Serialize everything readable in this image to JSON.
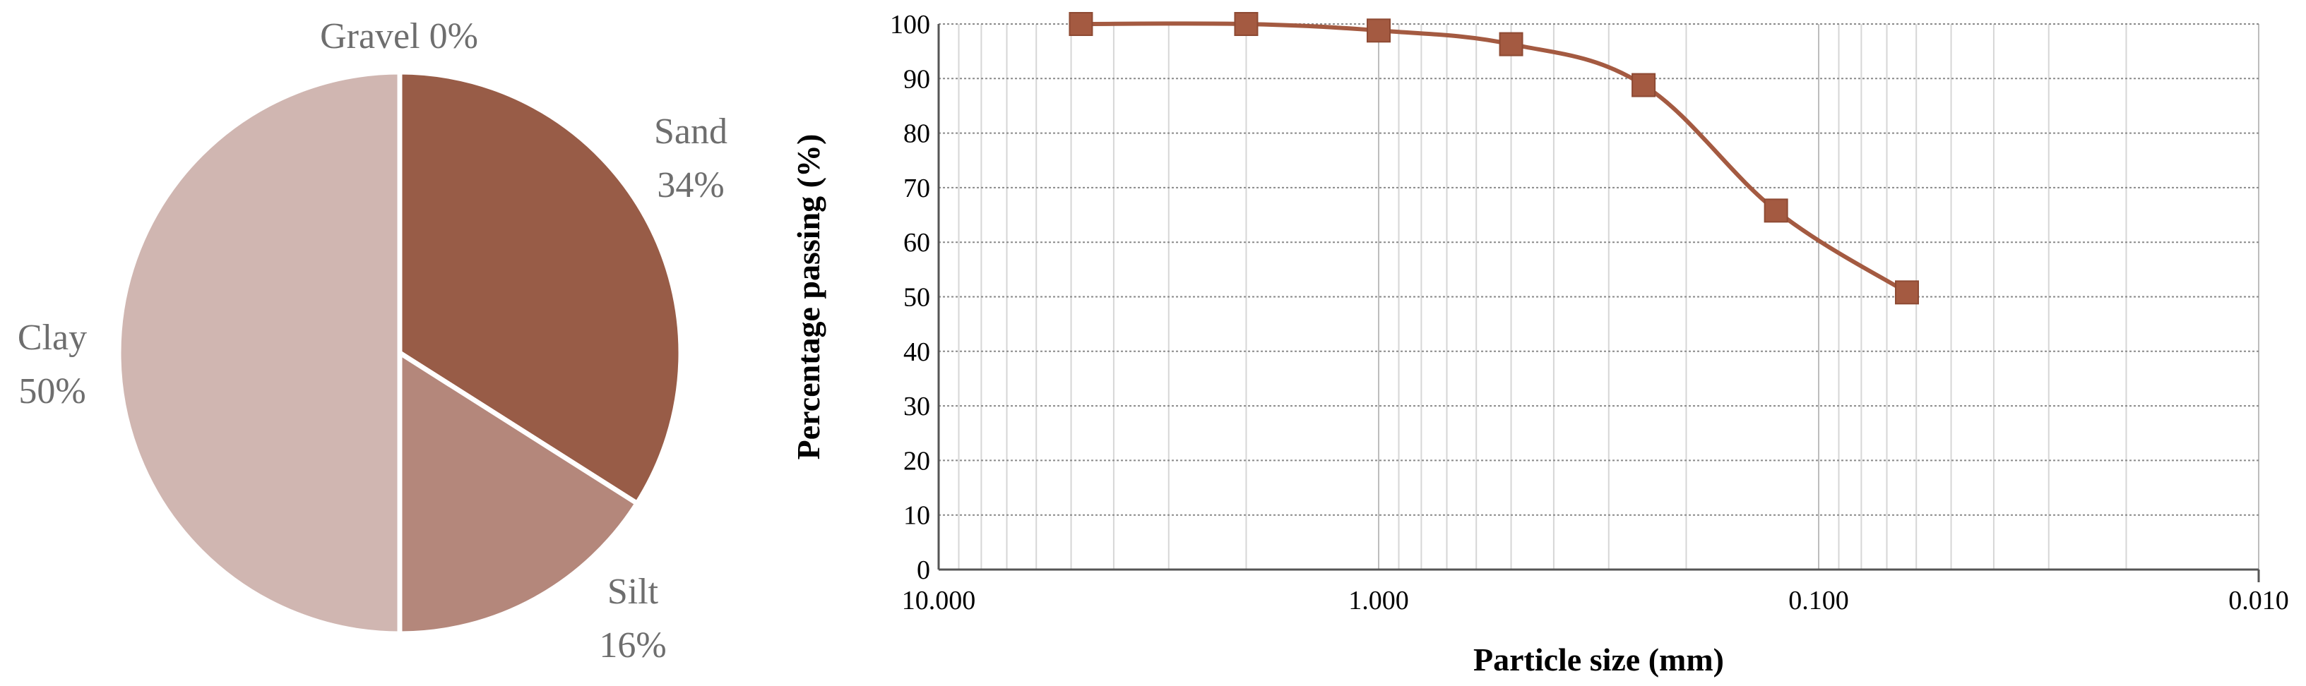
{
  "chart_data": [
    {
      "type": "pie",
      "slices": [
        {
          "label": "Gravel",
          "value": 0,
          "percent_label": "0%",
          "color": "#8c4a33"
        },
        {
          "label": "Sand",
          "value": 34,
          "percent_label": "34%",
          "color": "#985c47"
        },
        {
          "label": "Silt",
          "value": 16,
          "percent_label": "16%",
          "color": "#b4877b"
        },
        {
          "label": "Clay",
          "value": 50,
          "percent_label": "50%",
          "color": "#d0b6b1"
        }
      ],
      "start_angle": "12 o'clock",
      "direction": "clockwise",
      "separator_color": "#ffffff"
    },
    {
      "type": "line",
      "x_scale": "log",
      "x_reversed": true,
      "xlim": [
        10,
        0.01
      ],
      "ylim": [
        0,
        100
      ],
      "grid": true,
      "xlabel": "Particle size (mm)",
      "ylabel": "Percentage passing (%)",
      "x_tick_labels": [
        "10.000",
        "1.000",
        "0.100",
        "0.010"
      ],
      "x_tick_values": [
        10,
        1,
        0.1,
        0.01
      ],
      "y_tick_values": [
        0,
        10,
        20,
        30,
        40,
        50,
        60,
        70,
        80,
        90,
        100
      ],
      "series": [
        {
          "marker": "square",
          "color": "#a45a41",
          "smooth": true,
          "x": [
            4.75,
            2.0,
            1.0,
            0.5,
            0.25,
            0.125,
            0.063
          ],
          "y": [
            100,
            100,
            98.8,
            96.3,
            88.8,
            65.8,
            50.8
          ]
        }
      ]
    }
  ]
}
